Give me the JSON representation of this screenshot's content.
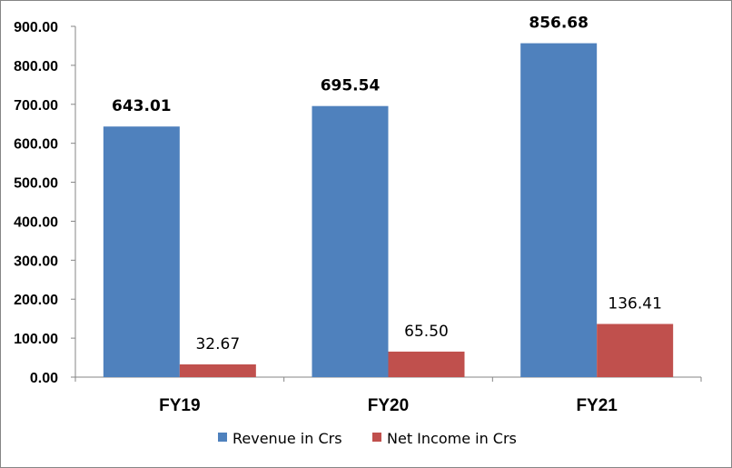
{
  "chart_data": {
    "type": "bar",
    "title": "",
    "xlabel": "",
    "ylabel": "",
    "ylim": [
      0,
      900
    ],
    "yticks": [
      "0.00",
      "100.00",
      "200.00",
      "300.00",
      "400.00",
      "500.00",
      "600.00",
      "700.00",
      "800.00",
      "900.00"
    ],
    "categories": [
      "FY19",
      "FY20",
      "FY21"
    ],
    "series": [
      {
        "name": "Revenue in Crs",
        "color": "#4F81BD",
        "values": [
          643.01,
          695.54,
          856.68
        ],
        "labels": [
          "643.01",
          "695.54",
          "856.68"
        ]
      },
      {
        "name": "Net Income in Crs",
        "color": "#C0504D",
        "values": [
          32.67,
          65.5,
          136.41
        ],
        "labels": [
          "32.67",
          "65.50",
          "136.41"
        ]
      }
    ],
    "legend_position": "bottom",
    "grid": false
  }
}
